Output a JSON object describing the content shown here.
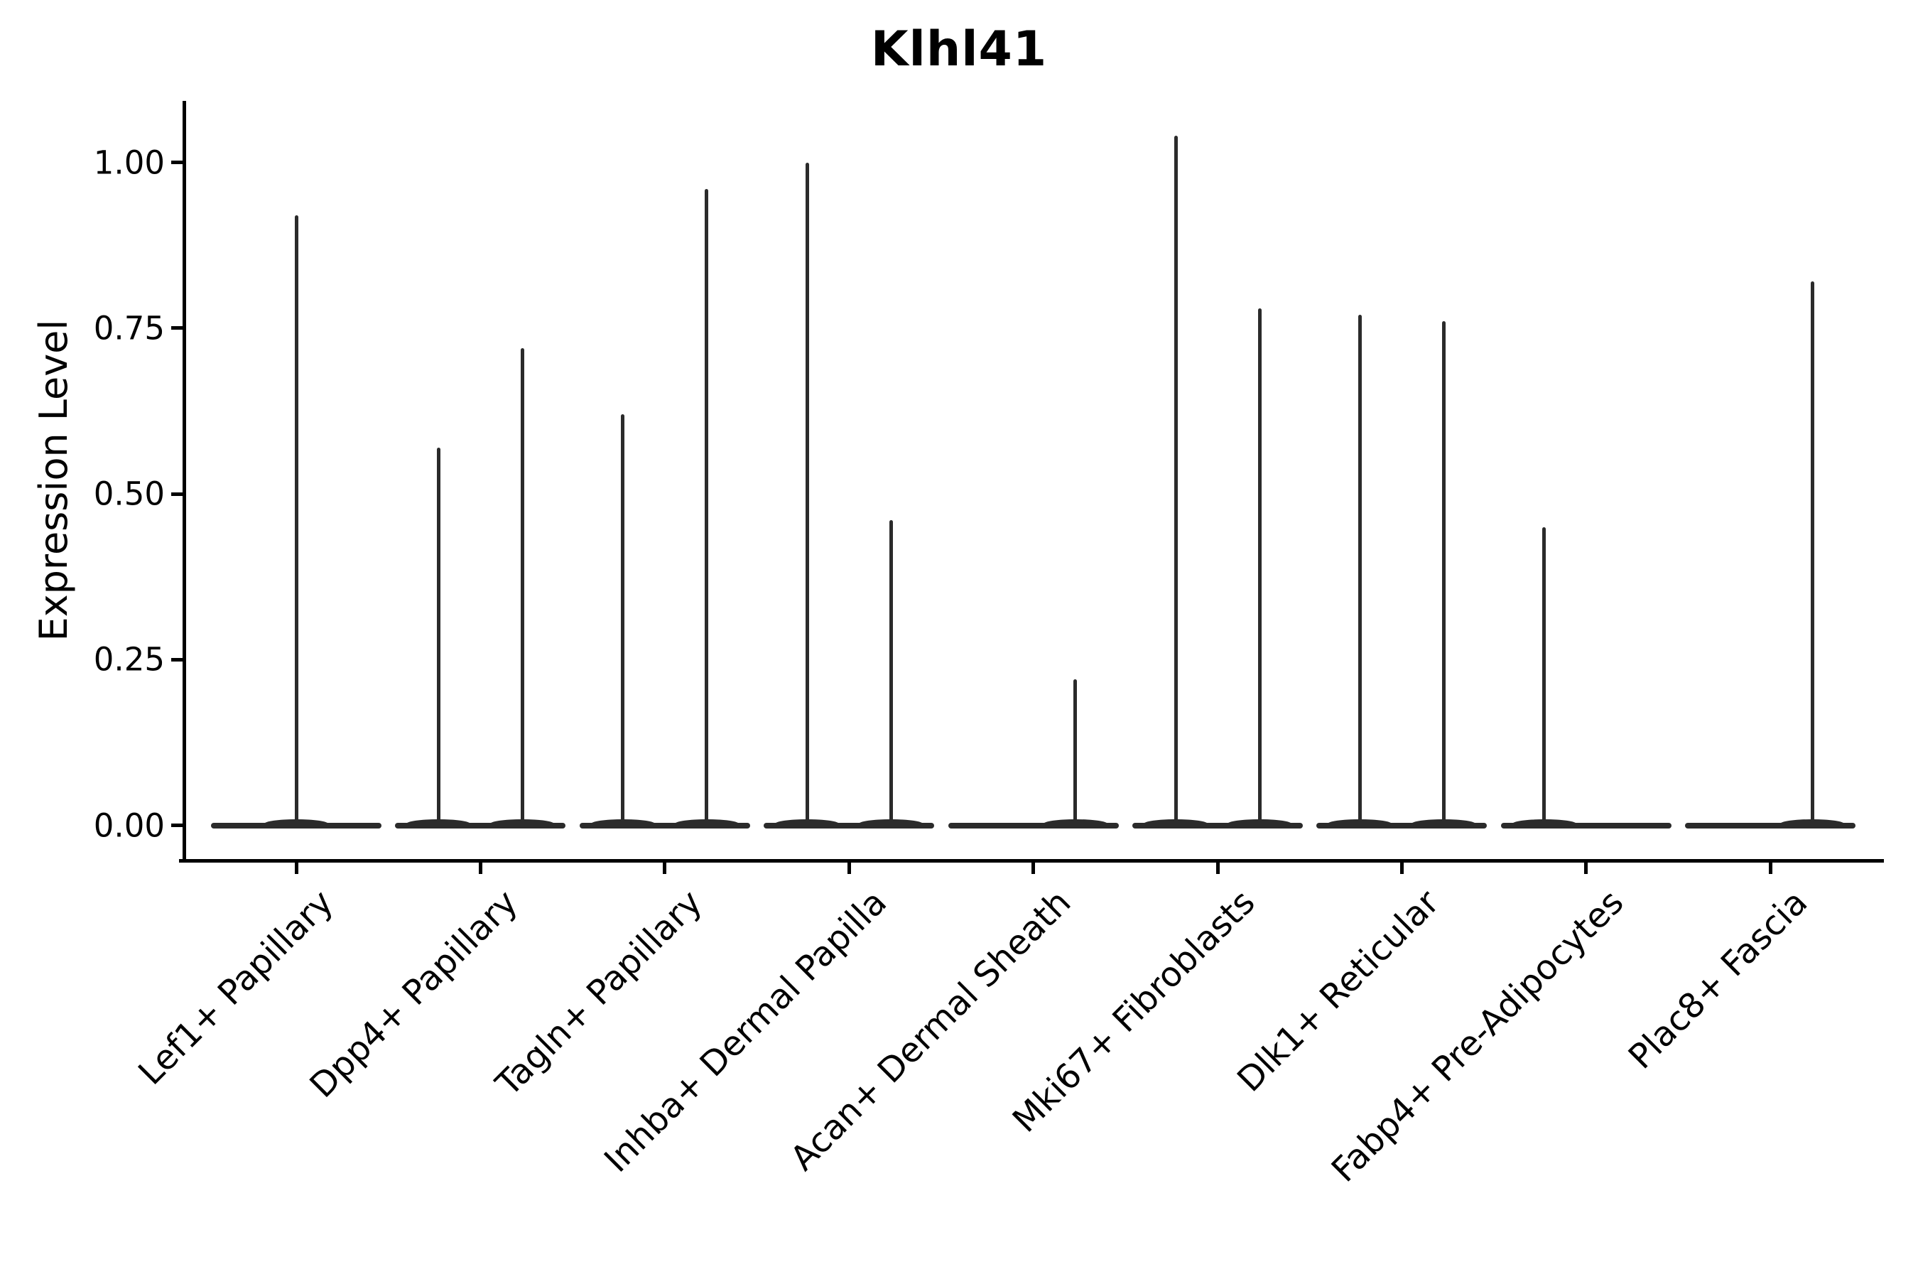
{
  "figure": {
    "title": "Klhl41",
    "background_color": "#ffffff",
    "text_color": "#000000",
    "violin_line_color": "#2b2b2b"
  },
  "y_axis": {
    "label": "Expression Level",
    "tick_labels": [
      "0.00",
      "0.25",
      "0.50",
      "0.75",
      "1.00"
    ]
  },
  "chart_data": {
    "type": "violin",
    "title": "Klhl41",
    "xlabel": "",
    "ylabel": "Expression Level",
    "ylim": [
      -0.05,
      1.09
    ],
    "yticks": [
      0.0,
      0.25,
      0.5,
      0.75,
      1.0
    ],
    "ytick_labels": [
      "0.00",
      "0.25",
      "0.50",
      "0.75",
      "1.00"
    ],
    "grid": false,
    "legend": "none",
    "description": "Violin plot of Klhl41 expression; each violin is collapsed onto the zero line with a thin density spike reaching the peak expression value. Most categories contain two side-by-side violins (left/right); Lef1+ Papillary has a single centered violin.",
    "categories": [
      "Lef1+ Papillary",
      "Dpp4+ Papillary",
      "Tagln+ Papillary",
      "Inhba+ Dermal Papilla",
      "Acan+ Dermal Sheath",
      "Mki67+ Fibroblasts",
      "Dlk1+ Reticular",
      "Fabp4+ Pre-Adipocytes",
      "Plac8+ Fascia"
    ],
    "violins": [
      {
        "category": "Lef1+ Papillary",
        "peaks": [
          {
            "slot": "full",
            "peak": 0.92
          }
        ]
      },
      {
        "category": "Dpp4+ Papillary",
        "peaks": [
          {
            "slot": "left",
            "peak": 0.57
          },
          {
            "slot": "right",
            "peak": 0.72
          }
        ]
      },
      {
        "category": "Tagln+ Papillary",
        "peaks": [
          {
            "slot": "left",
            "peak": 0.62
          },
          {
            "slot": "right",
            "peak": 0.96
          }
        ]
      },
      {
        "category": "Inhba+ Dermal Papilla",
        "peaks": [
          {
            "slot": "left",
            "peak": 1.0
          },
          {
            "slot": "right",
            "peak": 0.46
          }
        ]
      },
      {
        "category": "Acan+ Dermal Sheath",
        "peaks": [
          {
            "slot": "left",
            "peak": 0.0
          },
          {
            "slot": "right",
            "peak": 0.22
          }
        ]
      },
      {
        "category": "Mki67+ Fibroblasts",
        "peaks": [
          {
            "slot": "left",
            "peak": 1.04
          },
          {
            "slot": "right",
            "peak": 0.78
          }
        ]
      },
      {
        "category": "Dlk1+ Reticular",
        "peaks": [
          {
            "slot": "left",
            "peak": 0.77
          },
          {
            "slot": "right",
            "peak": 0.76
          }
        ]
      },
      {
        "category": "Fabp4+ Pre-Adipocytes",
        "peaks": [
          {
            "slot": "left",
            "peak": 0.45
          },
          {
            "slot": "right",
            "peak": 0.0
          }
        ]
      },
      {
        "category": "Plac8+ Fascia",
        "peaks": [
          {
            "slot": "left",
            "peak": 0.0
          },
          {
            "slot": "right",
            "peak": 0.82
          }
        ]
      }
    ]
  }
}
